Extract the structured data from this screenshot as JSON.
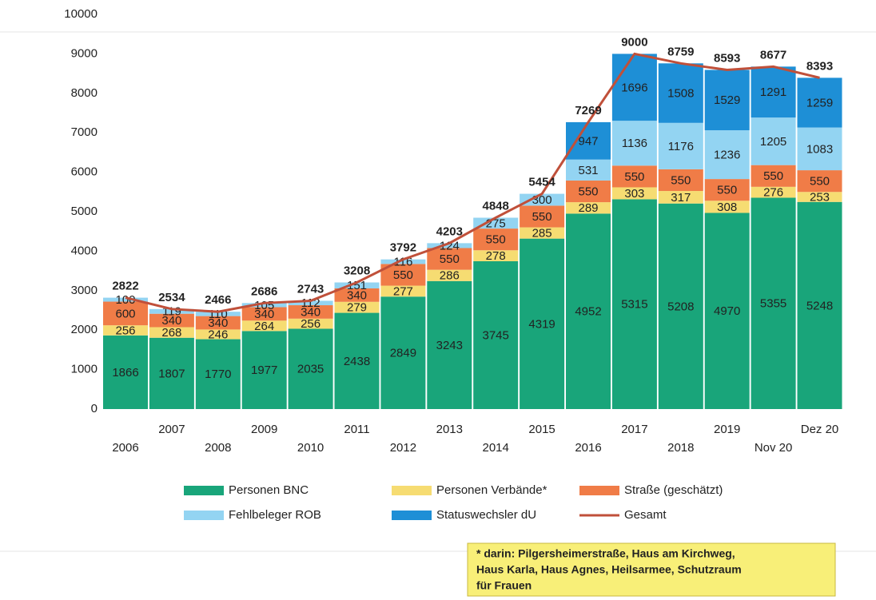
{
  "chart_data": {
    "type": "bar",
    "stacked": true,
    "categories": [
      "2006",
      "2007",
      "2008",
      "2009",
      "2010",
      "2011",
      "2012",
      "2013",
      "2014",
      "2015",
      "2016",
      "2017",
      "2018",
      "2019",
      "Nov 20",
      "Dez 20"
    ],
    "series": [
      {
        "name": "Personen BNC",
        "color": "#19a57a",
        "values": [
          1866,
          1807,
          1770,
          1977,
          2035,
          2438,
          2849,
          3243,
          3745,
          4319,
          4952,
          5315,
          5208,
          4970,
          5355,
          5248
        ]
      },
      {
        "name": "Personen Verbände*",
        "color": "#f6dc72",
        "values": [
          256,
          268,
          246,
          264,
          256,
          279,
          277,
          286,
          278,
          285,
          289,
          303,
          317,
          308,
          276,
          253
        ]
      },
      {
        "name": "Straße (geschätzt)",
        "color": "#f07c47",
        "values": [
          600,
          340,
          340,
          340,
          340,
          340,
          550,
          550,
          550,
          550,
          550,
          550,
          550,
          550,
          550,
          550
        ]
      },
      {
        "name": "Fehlbeleger ROB",
        "color": "#93d4f2",
        "values": [
          100,
          119,
          110,
          105,
          112,
          151,
          116,
          124,
          275,
          300,
          531,
          1136,
          1176,
          1236,
          1205,
          1083
        ]
      },
      {
        "name": "Statuswechsler dU",
        "color": "#1e8fd6",
        "values": [
          null,
          null,
          null,
          null,
          null,
          null,
          null,
          null,
          null,
          null,
          947,
          1696,
          1508,
          1529,
          1291,
          1259
        ]
      },
      {
        "name": "Gesamt",
        "type": "line",
        "color": "#c0503a",
        "values": [
          2822,
          2534,
          2466,
          2686,
          2743,
          3208,
          3792,
          4203,
          4848,
          5454,
          7269,
          9000,
          8759,
          8593,
          8677,
          8393
        ]
      }
    ],
    "ylim": [
      0,
      10000
    ],
    "yticks": [
      0,
      1000,
      2000,
      3000,
      4000,
      5000,
      6000,
      7000,
      8000,
      9000,
      10000
    ],
    "grid": false,
    "annotation_lines": [
      "* darin: Pilgersheimerstraße, Haus am Kirchweg,",
      "Haus Karla, Haus Agnes, Heilsarmee, Schutzraum",
      "für Frauen"
    ]
  }
}
